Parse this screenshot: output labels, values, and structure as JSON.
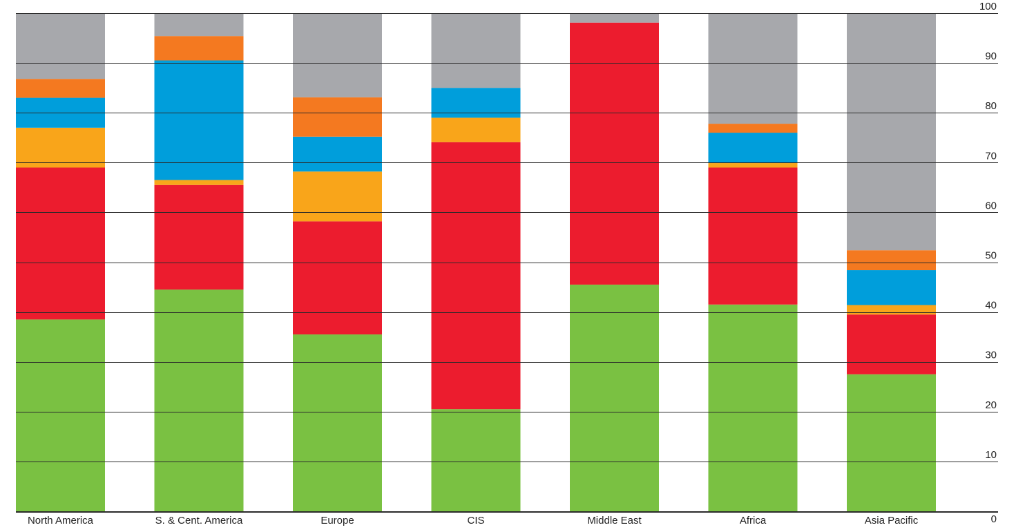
{
  "chart_data": {
    "type": "bar",
    "stacked": true,
    "categories": [
      "North America",
      "S. & Cent. America",
      "Europe",
      "CIS",
      "Middle East",
      "Africa",
      "Asia Pacific"
    ],
    "series": [
      {
        "color": "#7AC142",
        "values": [
          38.5,
          44.5,
          35.5,
          20.5,
          45.5,
          41.5,
          27.5
        ]
      },
      {
        "color": "#EC1C2E",
        "values": [
          30.5,
          21,
          22.7,
          53.6,
          52.6,
          27.5,
          12
        ]
      },
      {
        "color": "#F9A51A",
        "values": [
          8,
          1,
          10,
          4.9,
          0,
          0.9,
          1.9
        ]
      },
      {
        "color": "#009EDB",
        "values": [
          6,
          24,
          7,
          6,
          0,
          6.1,
          7
        ]
      },
      {
        "color": "#F47920",
        "values": [
          3.8,
          4.9,
          7.9,
          0,
          0,
          1.8,
          4
        ]
      },
      {
        "color": "#A7A8AC",
        "values": [
          13.2,
          4.6,
          16.9,
          15,
          1.9,
          22.2,
          47.6
        ]
      }
    ],
    "ylim": [
      0,
      100
    ],
    "yticks": [
      "0",
      "10",
      "20",
      "30",
      "40",
      "50",
      "60",
      "70",
      "80",
      "90",
      "100"
    ],
    "axis_position": "right",
    "grid": true
  }
}
